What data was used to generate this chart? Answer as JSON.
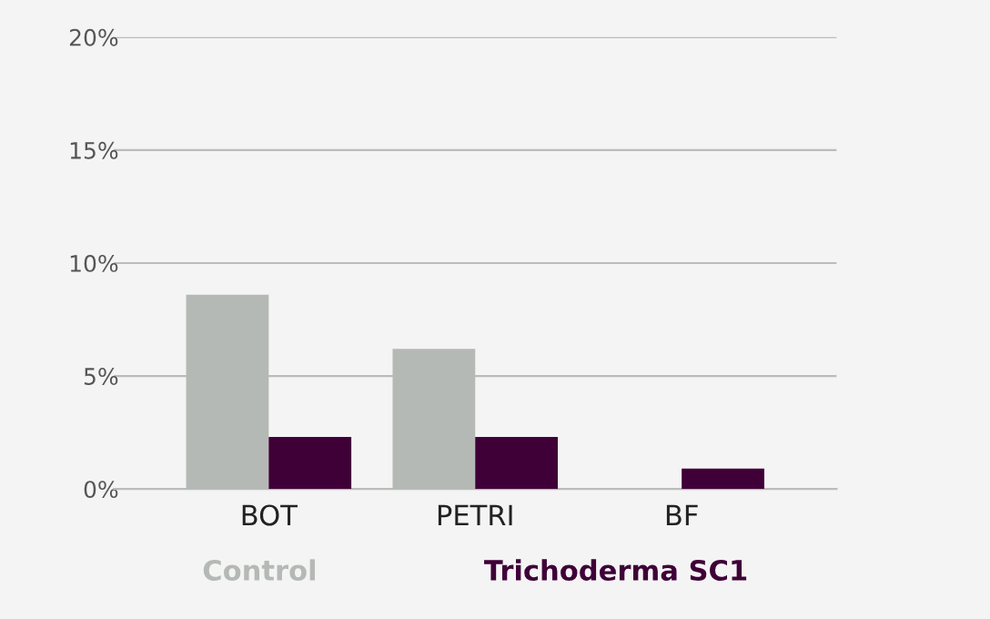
{
  "chart_data": {
    "type": "bar",
    "categories": [
      "BOT",
      "PETRI",
      "BF"
    ],
    "series": [
      {
        "name": "Control",
        "color": "#b5b9b5",
        "values": [
          8.6,
          6.2,
          0
        ]
      },
      {
        "name": "Trichoderma SC1",
        "color": "#3f0038",
        "values": [
          2.3,
          2.3,
          0.9
        ]
      }
    ],
    "ylim": [
      0,
      20
    ],
    "yticks": [
      {
        "value": 0,
        "label": "0%"
      },
      {
        "value": 5,
        "label": "5%"
      },
      {
        "value": 10,
        "label": "10%"
      },
      {
        "value": 15,
        "label": "15%"
      },
      {
        "value": 20,
        "label": "20%"
      }
    ],
    "grid": "y",
    "legend": "bottom"
  }
}
